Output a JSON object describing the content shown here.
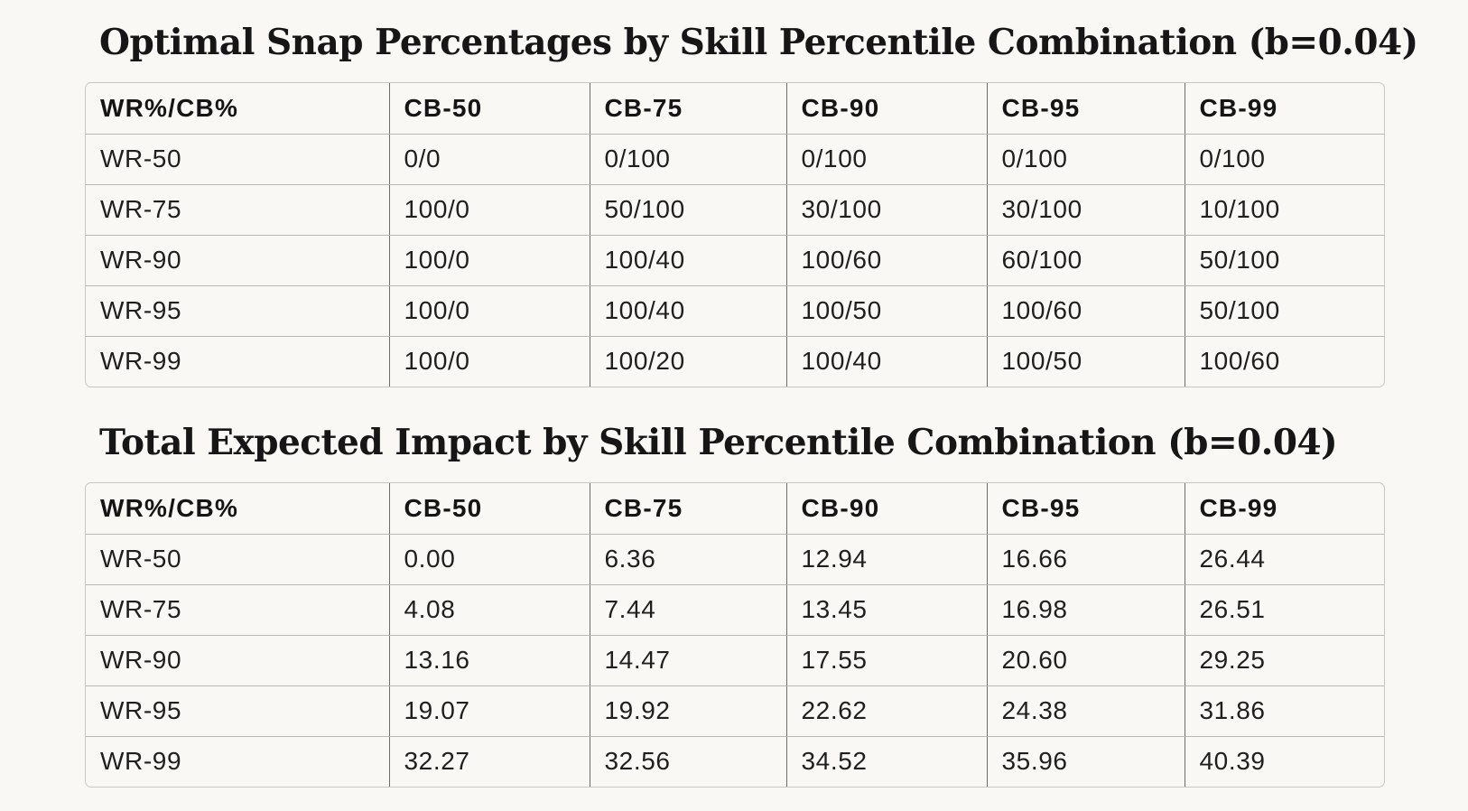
{
  "tables": [
    {
      "title": "Optimal Snap Percentages by Skill Percentile Combination (b=0.04)",
      "headers": [
        "WR%/CB%",
        "CB-50",
        "CB-75",
        "CB-90",
        "CB-95",
        "CB-99"
      ],
      "rows": [
        [
          "WR-50",
          "0/0",
          "0/100",
          "0/100",
          "0/100",
          "0/100"
        ],
        [
          "WR-75",
          "100/0",
          "50/100",
          "30/100",
          "30/100",
          "10/100"
        ],
        [
          "WR-90",
          "100/0",
          "100/40",
          "100/60",
          "60/100",
          "50/100"
        ],
        [
          "WR-95",
          "100/0",
          "100/40",
          "100/50",
          "100/60",
          "50/100"
        ],
        [
          "WR-99",
          "100/0",
          "100/20",
          "100/40",
          "100/50",
          "100/60"
        ]
      ]
    },
    {
      "title": "Total Expected Impact by Skill Percentile Combination (b=0.04)",
      "headers": [
        "WR%/CB%",
        "CB-50",
        "CB-75",
        "CB-90",
        "CB-95",
        "CB-99"
      ],
      "rows": [
        [
          "WR-50",
          "0.00",
          "6.36",
          "12.94",
          "16.66",
          "26.44"
        ],
        [
          "WR-75",
          "4.08",
          "7.44",
          "13.45",
          "16.98",
          "26.51"
        ],
        [
          "WR-90",
          "13.16",
          "14.47",
          "17.55",
          "20.60",
          "29.25"
        ],
        [
          "WR-95",
          "19.07",
          "19.92",
          "22.62",
          "24.38",
          "31.86"
        ],
        [
          "WR-99",
          "32.27",
          "32.56",
          "34.52",
          "35.96",
          "40.39"
        ]
      ]
    }
  ]
}
